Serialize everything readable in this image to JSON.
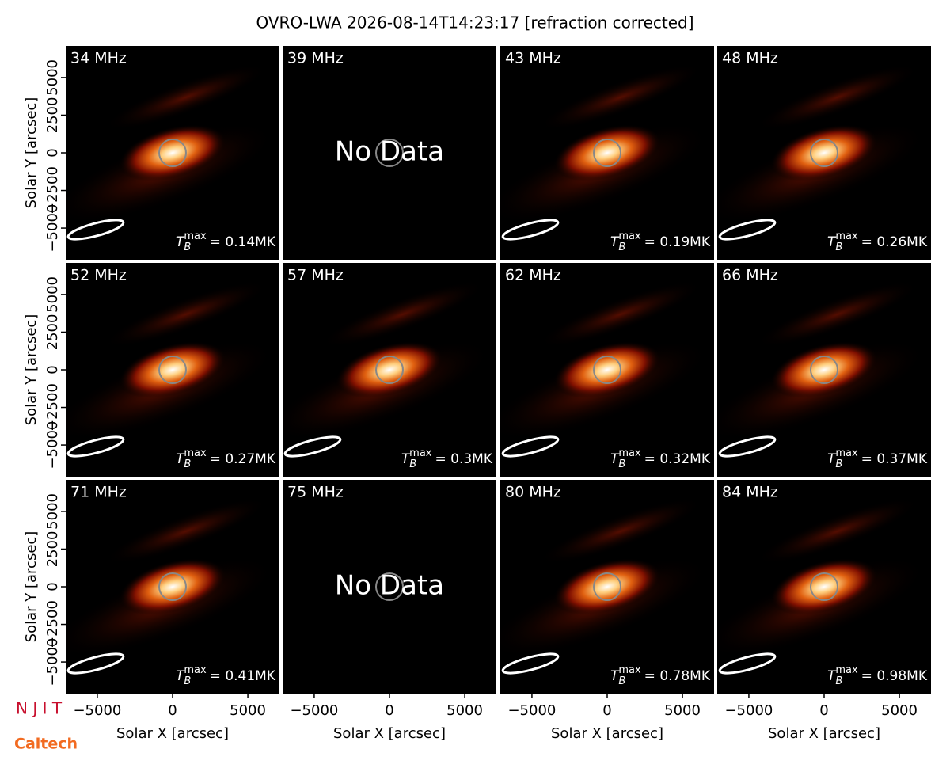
{
  "title": "OVRO-LWA 2026-08-14T14:23:17 [refraction corrected]",
  "logos": [
    "N J I T",
    "Caltech"
  ],
  "tb_symbol": {
    "base": "T",
    "sub": "B",
    "sup": "max"
  },
  "chart_data": [
    {
      "type": "image",
      "title": "34 MHz",
      "xlim": [
        -7100,
        7100
      ],
      "ylim": [
        -7100,
        7100
      ],
      "ylabel": "Solar Y [arcsec]",
      "yticks": [
        {
          "value": -5000,
          "label": "−5000"
        },
        {
          "value": -2500,
          "label": "−2500"
        },
        0,
        2500,
        5000
      ],
      "tb_max": "= 0.14MK"
    },
    {
      "type": "image",
      "title": "39 MHz",
      "xlim": [
        -7100,
        7100
      ],
      "ylim": [
        -7100,
        7100
      ],
      "note": "No Data"
    },
    {
      "type": "image",
      "title": "43 MHz",
      "xlim": [
        -7100,
        7100
      ],
      "ylim": [
        -7100,
        7100
      ],
      "tb_max": "= 0.19MK"
    },
    {
      "type": "image",
      "title": "48 MHz",
      "xlim": [
        -7100,
        7100
      ],
      "ylim": [
        -7100,
        7100
      ],
      "tb_max": "= 0.26MK"
    },
    {
      "type": "image",
      "title": "52 MHz",
      "xlim": [
        -7100,
        7100
      ],
      "ylim": [
        -7100,
        7100
      ],
      "ylabel": "Solar Y [arcsec]",
      "yticks": [
        {
          "value": -5000,
          "label": "−5000"
        },
        {
          "value": -2500,
          "label": "−2500"
        },
        0,
        2500,
        5000
      ],
      "tb_max": "= 0.27MK"
    },
    {
      "type": "image",
      "title": "57 MHz",
      "xlim": [
        -7100,
        7100
      ],
      "ylim": [
        -7100,
        7100
      ],
      "tb_max": "= 0.3MK"
    },
    {
      "type": "image",
      "title": "62 MHz",
      "xlim": [
        -7100,
        7100
      ],
      "ylim": [
        -7100,
        7100
      ],
      "tb_max": "= 0.32MK"
    },
    {
      "type": "image",
      "title": "66 MHz",
      "xlim": [
        -7100,
        7100
      ],
      "ylim": [
        -7100,
        7100
      ],
      "tb_max": "= 0.37MK"
    },
    {
      "type": "image",
      "title": "71 MHz",
      "xlim": [
        -7100,
        7100
      ],
      "ylim": [
        -7100,
        7100
      ],
      "ylabel": "Solar Y [arcsec]",
      "yticks": [
        {
          "value": -5000,
          "label": "−5000"
        },
        {
          "value": -2500,
          "label": "−2500"
        },
        0,
        2500,
        5000
      ],
      "xlabel": "Solar X [arcsec]",
      "xticks": [
        {
          "value": -5000,
          "label": "−5000"
        },
        0,
        5000
      ],
      "tb_max": "= 0.41MK"
    },
    {
      "type": "image",
      "title": "75 MHz",
      "xlim": [
        -7100,
        7100
      ],
      "ylim": [
        -7100,
        7100
      ],
      "note": "No Data",
      "xlabel": "Solar X [arcsec]",
      "xticks": [
        {
          "value": -5000,
          "label": "−5000"
        },
        0,
        5000
      ]
    },
    {
      "type": "image",
      "title": "80 MHz",
      "xlim": [
        -7100,
        7100
      ],
      "ylim": [
        -7100,
        7100
      ],
      "xlabel": "Solar X [arcsec]",
      "xticks": [
        {
          "value": -5000,
          "label": "−5000"
        },
        0,
        5000
      ],
      "tb_max": "= 0.78MK"
    },
    {
      "type": "image",
      "title": "84 MHz",
      "xlim": [
        -7100,
        7100
      ],
      "ylim": [
        -7100,
        7100
      ],
      "xlabel": "Solar X [arcsec]",
      "xticks": [
        {
          "value": -5000,
          "label": "−5000"
        },
        0,
        5000
      ],
      "tb_max": "= 0.98MK"
    }
  ]
}
